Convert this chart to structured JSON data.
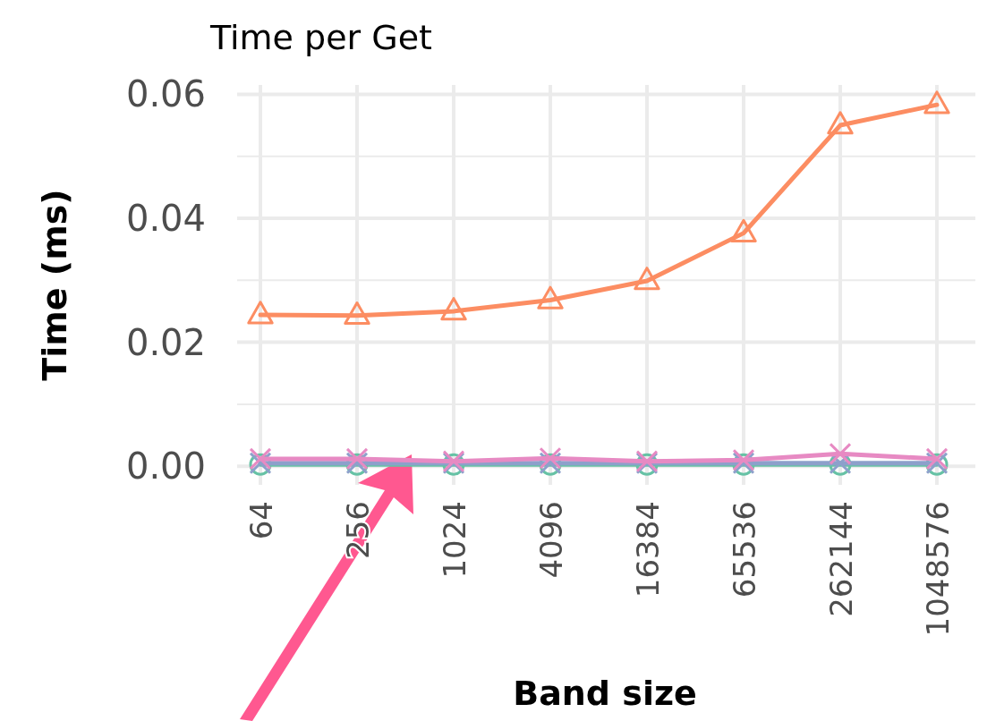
{
  "chart_data": {
    "type": "line",
    "title": "Time per Get",
    "xlabel": "Band size",
    "ylabel": "Time (ms)",
    "categories": [
      "64",
      "256",
      "1024",
      "4096",
      "16384",
      "65536",
      "262144",
      "1048576"
    ],
    "series": [
      {
        "color": "#66c2a5",
        "marker": "circle",
        "values": [
          0.0003,
          0.0003,
          0.0003,
          0.0003,
          0.0003,
          0.0003,
          0.0003,
          0.0003
        ]
      },
      {
        "color": "#8da0cb",
        "marker": "cross",
        "values": [
          0.0005,
          0.0005,
          0.0005,
          0.0005,
          0.0005,
          0.0005,
          0.0005,
          0.0005
        ]
      },
      {
        "color": "#fc8d62",
        "marker": "triangle",
        "values": [
          0.0244,
          0.0243,
          0.025,
          0.0268,
          0.0299,
          0.0376,
          0.055,
          0.0583
        ]
      },
      {
        "color": "#e78ac3",
        "marker": "cross",
        "values": [
          0.0012,
          0.0012,
          0.0008,
          0.0013,
          0.0008,
          0.001,
          0.002,
          0.0012
        ]
      }
    ],
    "ylim": [
      -0.003,
      0.0615
    ],
    "yticks": [
      {
        "value": 0,
        "label": "0.00"
      },
      {
        "value": 0.01,
        "label": null
      },
      {
        "value": 0.02,
        "label": "0.02"
      },
      {
        "value": 0.03,
        "label": null
      },
      {
        "value": 0.04,
        "label": "0.04"
      },
      {
        "value": 0.05,
        "label": null
      },
      {
        "value": 0.06,
        "label": "0.06"
      }
    ],
    "grid": true
  }
}
